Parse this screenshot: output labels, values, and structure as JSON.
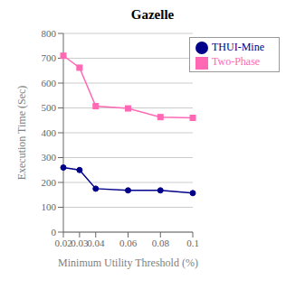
{
  "chart_data": {
    "type": "line",
    "title": "Gazelle",
    "x_label": "Minimum Utility Threshold (%)",
    "y_label": "Execution Time (Sec)",
    "x": [
      0.02,
      0.03,
      0.04,
      0.06,
      0.08,
      0.1
    ],
    "series": [
      {
        "name": "Two-Phase",
        "color": "#ff69b4",
        "marker": "square",
        "values": [
          710,
          662,
          507,
          498,
          463,
          460
        ]
      },
      {
        "name": "THUI-Mine",
        "color": "#00008b",
        "marker": "circle",
        "values": [
          260,
          250,
          175,
          168,
          168,
          157
        ]
      }
    ],
    "xlim": [
      0.02,
      0.1
    ],
    "xticks": [
      0.02,
      0.03,
      0.04,
      0.06,
      0.08,
      0.1
    ],
    "ylim": [
      0,
      800
    ],
    "yticks": [
      0,
      100,
      200,
      300,
      400,
      500,
      600,
      700,
      800
    ],
    "grid": true,
    "legend": "upper right"
  }
}
